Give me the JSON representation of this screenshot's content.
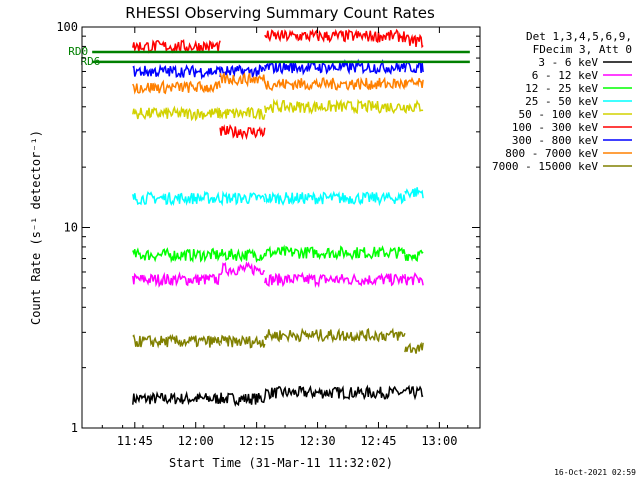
{
  "chart_data": {
    "type": "line",
    "title": "RHESSI Observing Summary Count Rates",
    "xlabel": "Start Time (31-Mar-11 11:32:02)",
    "ylabel": "Count Rate (s⁻¹ detector⁻¹)",
    "yscale": "log",
    "ylim": [
      1,
      100
    ],
    "xlim_minutes": [
      0,
      98
    ],
    "xticks": [
      {
        "label": "11:45",
        "minute": 13
      },
      {
        "label": "12:00",
        "minute": 28
      },
      {
        "label": "12:15",
        "minute": 43
      },
      {
        "label": "12:30",
        "minute": 58
      },
      {
        "label": "12:45",
        "minute": 73
      },
      {
        "label": "13:00",
        "minute": 88
      }
    ],
    "yticks": [
      {
        "label": "1",
        "value": 1
      },
      {
        "label": "10",
        "value": 10
      },
      {
        "label": "100",
        "value": 100
      }
    ],
    "legend_header": [
      "Det 1,3,4,5,6,9,",
      "FDecim 3, Att 0"
    ],
    "legend_position": "top-right",
    "annotations": [
      {
        "text": "RD0",
        "value": 75,
        "color": "#008000"
      },
      {
        "text": "RD6",
        "value": 67,
        "color": "#008000"
      }
    ],
    "segments": [
      [
        12.5,
        34
      ],
      [
        34,
        45
      ],
      [
        45,
        79.5
      ],
      [
        79.5,
        84
      ]
    ],
    "series": [
      {
        "name": "3 - 6 keV",
        "color": "#000000",
        "levels": [
          1.4,
          1.4,
          1.5,
          1.5
        ]
      },
      {
        "name": "6 - 12 keV",
        "color": "#ff00ff",
        "levels": [
          5.5,
          6.2,
          5.5,
          5.5
        ]
      },
      {
        "name": "12 - 25 keV",
        "color": "#00ff00",
        "levels": [
          7.3,
          7.3,
          7.5,
          7.3
        ]
      },
      {
        "name": "25 - 50 keV",
        "color": "#00ffff",
        "levels": [
          14,
          14,
          14,
          15
        ]
      },
      {
        "name": "50 - 100 keV",
        "color": "#d2d200",
        "levels": [
          37,
          37,
          40,
          40
        ]
      },
      {
        "name": "100 - 300 keV",
        "color": "#ff0000",
        "levels": [
          80,
          30,
          90,
          85
        ]
      },
      {
        "name": "300 - 800 keV",
        "color": "#0000ff",
        "levels": [
          60,
          60,
          63,
          63
        ]
      },
      {
        "name": "800 - 7000 keV",
        "color": "#ff8000",
        "levels": [
          50,
          55,
          52,
          52
        ]
      },
      {
        "name": "7000 - 15000 keV",
        "color": "#808000",
        "levels": [
          2.7,
          2.7,
          2.9,
          2.5
        ]
      }
    ],
    "footer": "16-Oct-2021 02:59"
  }
}
